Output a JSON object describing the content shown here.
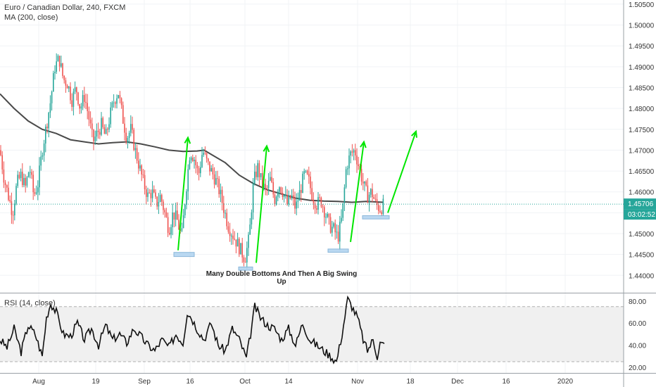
{
  "chart_data": [
    {
      "type": "candlestick",
      "title": "Euro / Canadian Dollar, 240, FXCM",
      "indicator": "MA (200, close)",
      "annotation": "Many Double Bottoms And Then A Big Swing Up",
      "ylim": [
        1.436,
        1.506
      ],
      "y_ticks": [
        "1.50500",
        "1.50000",
        "1.49500",
        "1.49000",
        "1.48500",
        "1.48000",
        "1.47500",
        "1.47000",
        "1.46500",
        "1.46000",
        "1.45500",
        "1.45000",
        "1.44500",
        "1.44000"
      ],
      "x_ticks": [
        "Aug",
        "19",
        "Sep",
        "16",
        "Oct",
        "14",
        "Nov",
        "18",
        "Dec",
        "16",
        "2020"
      ],
      "last_price": "1.45706",
      "countdown": "03:02:52",
      "price_path": [
        [
          0,
          1.47
        ],
        [
          6,
          1.463
        ],
        [
          12,
          1.459
        ],
        [
          18,
          1.455
        ],
        [
          24,
          1.462
        ],
        [
          30,
          1.464
        ],
        [
          36,
          1.461
        ],
        [
          42,
          1.466
        ],
        [
          48,
          1.459
        ],
        [
          54,
          1.462
        ],
        [
          60,
          1.47
        ],
        [
          66,
          1.476
        ],
        [
          72,
          1.482
        ],
        [
          78,
          1.49
        ],
        [
          84,
          1.492
        ],
        [
          90,
          1.487
        ],
        [
          96,
          1.486
        ],
        [
          102,
          1.482
        ],
        [
          108,
          1.485
        ],
        [
          114,
          1.48
        ],
        [
          120,
          1.483
        ],
        [
          126,
          1.478
        ],
        [
          132,
          1.472
        ],
        [
          138,
          1.474
        ],
        [
          144,
          1.476
        ],
        [
          150,
          1.473
        ],
        [
          156,
          1.478
        ],
        [
          162,
          1.482
        ],
        [
          168,
          1.484
        ],
        [
          174,
          1.478
        ],
        [
          180,
          1.473
        ],
        [
          186,
          1.475
        ],
        [
          192,
          1.47
        ],
        [
          198,
          1.466
        ],
        [
          204,
          1.462
        ],
        [
          210,
          1.459
        ],
        [
          216,
          1.46
        ],
        [
          222,
          1.457
        ],
        [
          228,
          1.459
        ],
        [
          234,
          1.455
        ],
        [
          240,
          1.451
        ],
        [
          246,
          1.455
        ],
        [
          252,
          1.453
        ],
        [
          258,
          1.449
        ],
        [
          264,
          1.46
        ],
        [
          270,
          1.47
        ],
        [
          276,
          1.468
        ],
        [
          282,
          1.464
        ],
        [
          288,
          1.47
        ],
        [
          294,
          1.467
        ],
        [
          300,
          1.465
        ],
        [
          306,
          1.463
        ],
        [
          312,
          1.46
        ],
        [
          318,
          1.456
        ],
        [
          324,
          1.452
        ],
        [
          330,
          1.45
        ],
        [
          336,
          1.448
        ],
        [
          342,
          1.446
        ],
        [
          348,
          1.444
        ],
        [
          354,
          1.449
        ],
        [
          360,
          1.462
        ],
        [
          366,
          1.466
        ],
        [
          372,
          1.462
        ],
        [
          378,
          1.46
        ],
        [
          384,
          1.463
        ],
        [
          390,
          1.458
        ],
        [
          396,
          1.462
        ],
        [
          402,
          1.46
        ],
        [
          408,
          1.457
        ],
        [
          414,
          1.459
        ],
        [
          420,
          1.456
        ],
        [
          426,
          1.46
        ],
        [
          432,
          1.464
        ],
        [
          438,
          1.463
        ],
        [
          444,
          1.459
        ],
        [
          450,
          1.457
        ],
        [
          456,
          1.458
        ],
        [
          462,
          1.455
        ],
        [
          468,
          1.452
        ],
        [
          474,
          1.451
        ],
        [
          480,
          1.449
        ],
        [
          486,
          1.454
        ],
        [
          492,
          1.466
        ],
        [
          498,
          1.469
        ],
        [
          504,
          1.47
        ],
        [
          510,
          1.466
        ],
        [
          516,
          1.462
        ],
        [
          522,
          1.459
        ],
        [
          528,
          1.46
        ],
        [
          534,
          1.457
        ],
        [
          540,
          1.456
        ],
        [
          546,
          1.457
        ]
      ],
      "ma_line": [
        [
          0,
          1.4835
        ],
        [
          20,
          1.48
        ],
        [
          40,
          1.477
        ],
        [
          60,
          1.475
        ],
        [
          80,
          1.474
        ],
        [
          100,
          1.4725
        ],
        [
          120,
          1.472
        ],
        [
          140,
          1.4715
        ],
        [
          160,
          1.4718
        ],
        [
          180,
          1.472
        ],
        [
          200,
          1.4715
        ],
        [
          220,
          1.4708
        ],
        [
          240,
          1.47
        ],
        [
          260,
          1.4697
        ],
        [
          280,
          1.4698
        ],
        [
          290,
          1.47
        ],
        [
          300,
          1.469
        ],
        [
          320,
          1.467
        ],
        [
          340,
          1.464
        ],
        [
          360,
          1.462
        ],
        [
          380,
          1.4605
        ],
        [
          400,
          1.4595
        ],
        [
          420,
          1.4585
        ],
        [
          440,
          1.458
        ],
        [
          460,
          1.4578
        ],
        [
          480,
          1.4577
        ],
        [
          500,
          1.4575
        ],
        [
          520,
          1.4577
        ],
        [
          545,
          1.4575
        ]
      ],
      "zones": [
        {
          "x0": 247,
          "x1": 276,
          "y0": 1.4445,
          "y1": 1.4455
        },
        {
          "x0": 339,
          "x1": 359,
          "y0": 1.4412,
          "y1": 1.442
        },
        {
          "x0": 466,
          "x1": 495,
          "y0": 1.4455,
          "y1": 1.4463
        },
        {
          "x0": 515,
          "x1": 553,
          "y0": 1.4535,
          "y1": 1.4543
        }
      ],
      "arrows": [
        {
          "from": [
            253,
            1.446
          ],
          "to": [
            267,
            1.473
          ]
        },
        {
          "from": [
            364,
            1.443
          ],
          "to": [
            379,
            1.471
          ]
        },
        {
          "from": [
            498,
            1.448
          ],
          "to": [
            517,
            1.472
          ]
        },
        {
          "from": [
            551,
            1.455
          ],
          "to": [
            591,
            1.4745
          ]
        }
      ]
    },
    {
      "type": "line",
      "title": "RSI (14, close)",
      "ylim": [
        18,
        85
      ],
      "y_ticks": [
        "80.00",
        "60.00",
        "40.00",
        "20.00"
      ],
      "band": [
        25,
        75
      ],
      "x": [
        0,
        10,
        20,
        30,
        40,
        50,
        60,
        66,
        72,
        80,
        90,
        100,
        110,
        120,
        130,
        140,
        150,
        160,
        170,
        180,
        190,
        200,
        210,
        220,
        230,
        240,
        250,
        260,
        266,
        272,
        280,
        290,
        300,
        310,
        320,
        330,
        340,
        350,
        356,
        362,
        370,
        380,
        390,
        400,
        410,
        420,
        430,
        440,
        450,
        460,
        470,
        478,
        486,
        494,
        500,
        508,
        516,
        522,
        530,
        536,
        540,
        546
      ],
      "values": [
        45,
        38,
        55,
        34,
        58,
        50,
        30,
        65,
        78,
        70,
        50,
        48,
        60,
        45,
        55,
        40,
        58,
        45,
        50,
        42,
        55,
        48,
        40,
        35,
        45,
        38,
        50,
        42,
        70,
        65,
        55,
        45,
        60,
        40,
        35,
        55,
        45,
        28,
        50,
        75,
        65,
        58,
        55,
        45,
        55,
        40,
        60,
        45,
        40,
        35,
        30,
        25,
        50,
        82,
        75,
        65,
        45,
        35,
        45,
        30,
        42,
        40
      ]
    }
  ]
}
